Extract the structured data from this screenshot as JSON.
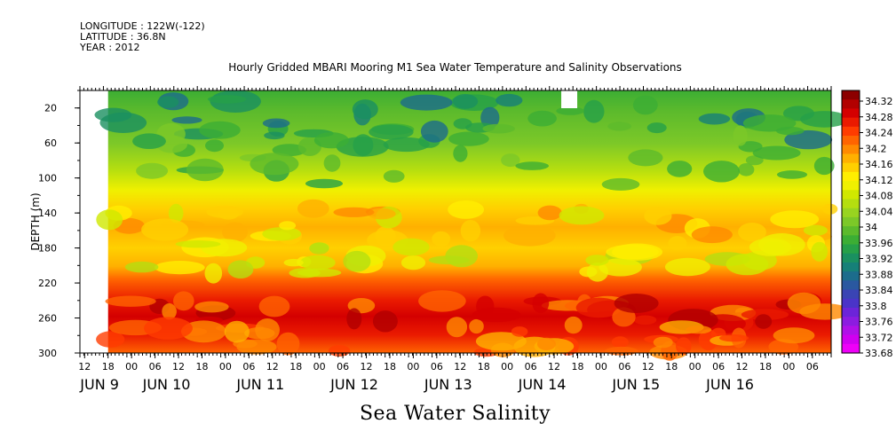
{
  "header": {
    "longitude": "LONGITUDE : 122W(-122)",
    "latitude": "LATITUDE : 36.8N",
    "year": "YEAR : 2012"
  },
  "title": "Hourly Gridded MBARI Mooring M1 Sea Water Temperature and Salinity Observations",
  "bottom_title": "Sea Water Salinity",
  "chart_data": {
    "type": "heatmap",
    "title": "Hourly Gridded MBARI Mooring M1 Sea Water Temperature and Salinity Observations",
    "variable": "Sea Water Salinity",
    "ylabel": "DEPTH (m)",
    "ylim": [
      300,
      0
    ],
    "y_reversed": true,
    "y_ticks": [
      20,
      60,
      100,
      140,
      180,
      220,
      260,
      300
    ],
    "x_hour_ticks": [
      "12",
      "18",
      "00",
      "06",
      "12",
      "18",
      "00",
      "06",
      "12",
      "18",
      "00",
      "06",
      "12",
      "18",
      "00",
      "06",
      "12",
      "18",
      "00",
      "06",
      "12",
      "18",
      "00",
      "06",
      "12",
      "18",
      "00",
      "06",
      "12",
      "18",
      "00",
      "06"
    ],
    "x_day_labels": [
      "JUN  9",
      "JUN 10",
      "JUN 11",
      "JUN 12",
      "JUN 13",
      "JUN 14",
      "JUN 15",
      "JUN 16"
    ],
    "time_range": [
      "2012-06-09 12:00",
      "2012-06-16 12:00"
    ],
    "data_start": "2012-06-09 18:00",
    "colorbar": {
      "labels": [
        "34.32",
        "34.28",
        "34.24",
        "34.2",
        "34.16",
        "34.12",
        "34.08",
        "34.04",
        "34",
        "33.96",
        "33.92",
        "33.88",
        "33.84",
        "33.8",
        "33.76",
        "33.72",
        "33.68"
      ],
      "colors": [
        "#8c0000",
        "#b20000",
        "#d40000",
        "#ea1a00",
        "#ff3c00",
        "#ff6400",
        "#ff8a00",
        "#ffb000",
        "#ffd000",
        "#ffee00",
        "#f0f000",
        "#d0e800",
        "#b4de10",
        "#98d420",
        "#7cc828",
        "#5cba2c",
        "#3cae34",
        "#26a048",
        "#1a9060",
        "#168078",
        "#1c6c8c",
        "#2a58a0",
        "#3a44b4",
        "#4a34c8",
        "#6c24d8",
        "#8c1ce0",
        "#b010e8",
        "#d000f0",
        "#ee00f8"
      ]
    },
    "depth_profile": [
      {
        "depth": 10,
        "salinity": 33.88
      },
      {
        "depth": 20,
        "salinity": 33.92
      },
      {
        "depth": 60,
        "salinity": 33.96
      },
      {
        "depth": 100,
        "salinity": 34.03
      },
      {
        "depth": 120,
        "salinity": 34.1
      },
      {
        "depth": 150,
        "salinity": 34.16
      },
      {
        "depth": 190,
        "salinity": 34.12
      },
      {
        "depth": 215,
        "salinity": 34.2
      },
      {
        "depth": 255,
        "salinity": 34.26
      },
      {
        "depth": 300,
        "salinity": 34.2
      }
    ]
  }
}
